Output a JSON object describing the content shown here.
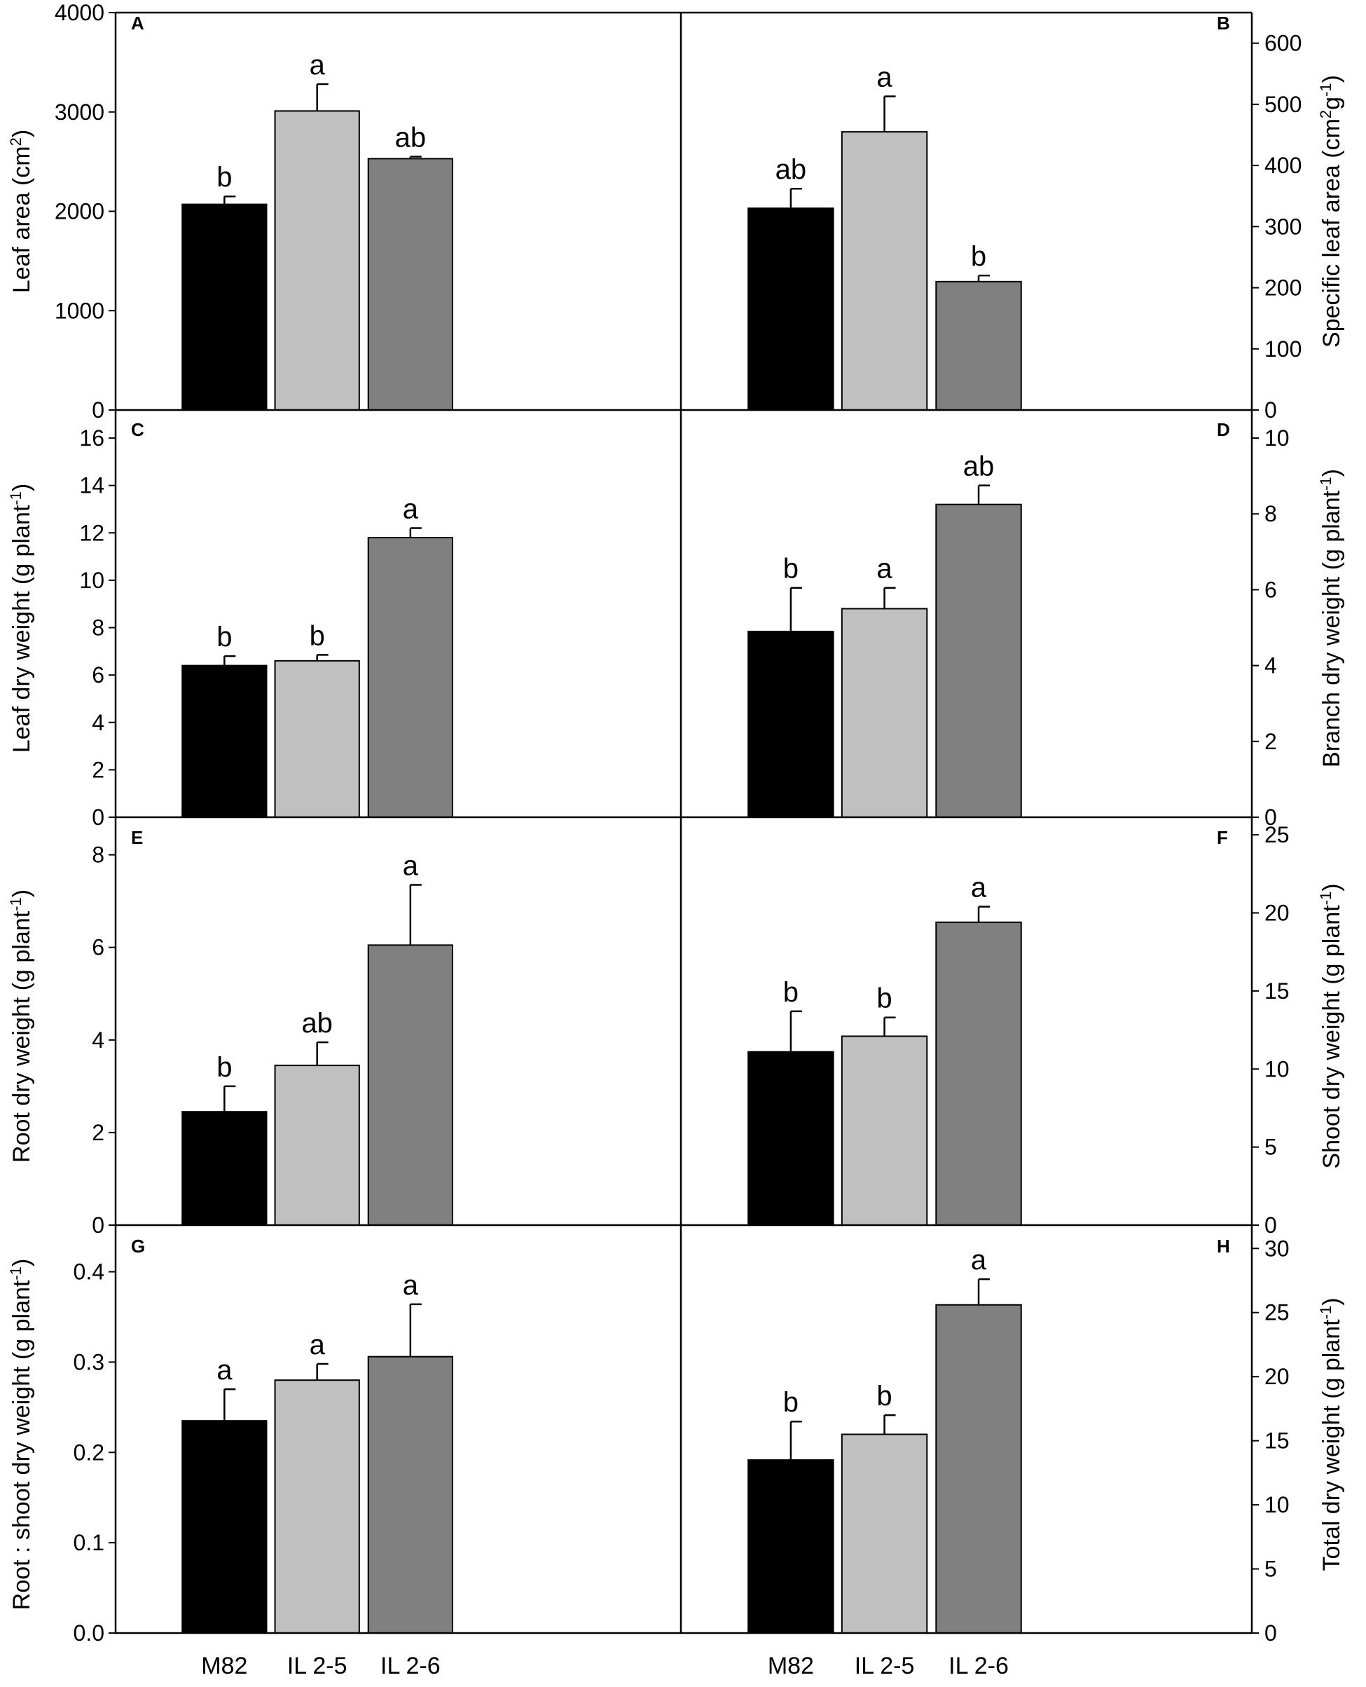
{
  "figure": {
    "categories": [
      "M82",
      "IL 2-5",
      "IL 2-6"
    ],
    "colors": {
      "M82": "#000000",
      "IL 2-5": "#c0c0c0",
      "IL 2-6": "#808080",
      "axis": "#000000",
      "background": "#ffffff"
    }
  },
  "chart_data": [
    {
      "panel": "A",
      "type": "bar",
      "ylabel": "Leaf area (cm2)",
      "ylabel_main": "Leaf area (cm",
      "ylabel_sup": "2",
      "ylabel_tail": ")",
      "axis_side": "left",
      "ylim": [
        0,
        4000
      ],
      "yticks": [
        0,
        1000,
        2000,
        3000,
        4000
      ],
      "categories": [
        "M82",
        "IL 2-5",
        "IL 2-6"
      ],
      "values": [
        2070,
        3010,
        2530
      ],
      "errors": [
        80,
        270,
        20
      ],
      "significance": [
        "b",
        "a",
        "ab"
      ]
    },
    {
      "panel": "B",
      "type": "bar",
      "ylabel": "Specific leaf area (cm2g-1)",
      "ylabel_main": "Specific leaf area (cm",
      "ylabel_sup": "2",
      "ylabel_tail": "g",
      "ylabel_sup2": "-1",
      "ylabel_tail2": ")",
      "axis_side": "right",
      "ylim": [
        0,
        650
      ],
      "yticks": [
        0,
        100,
        200,
        300,
        400,
        500,
        600
      ],
      "categories": [
        "M82",
        "IL 2-5",
        "IL 2-6"
      ],
      "values": [
        330,
        455,
        210
      ],
      "errors": [
        32,
        58,
        10
      ],
      "significance": [
        "ab",
        "a",
        "b"
      ]
    },
    {
      "panel": "C",
      "type": "bar",
      "ylabel": "Leaf dry weight (g plant-1)",
      "ylabel_main": "Leaf dry weight (g plant",
      "ylabel_sup": "-1",
      "ylabel_tail": ")",
      "axis_side": "left",
      "ylim": [
        0,
        16.8
      ],
      "yticks": [
        0,
        2,
        4,
        6,
        8,
        10,
        12,
        14,
        16
      ],
      "categories": [
        "M82",
        "IL 2-5",
        "IL 2-6"
      ],
      "values": [
        6.4,
        6.6,
        11.8
      ],
      "errors": [
        0.4,
        0.25,
        0.4
      ],
      "significance": [
        "b",
        "b",
        "a"
      ]
    },
    {
      "panel": "D",
      "type": "bar",
      "ylabel": "Branch dry weight (g plant-1)",
      "ylabel_main": "Branch dry weight (g plant",
      "ylabel_sup": "-1",
      "ylabel_tail": ")",
      "axis_side": "right",
      "ylim": [
        0,
        10.5
      ],
      "yticks": [
        0,
        2,
        4,
        6,
        8,
        10
      ],
      "categories": [
        "M82",
        "IL 2-5",
        "IL 2-6"
      ],
      "values": [
        4.9,
        5.5,
        8.25
      ],
      "errors": [
        1.15,
        0.55,
        0.5
      ],
      "significance": [
        "b",
        "a",
        "ab"
      ]
    },
    {
      "panel": "E",
      "type": "bar",
      "ylabel": "Root dry weight (g plant-1)",
      "ylabel_main": "Root dry weight (g plant",
      "ylabel_sup": "-1",
      "ylabel_tail": ")",
      "axis_side": "left",
      "ylim": [
        0,
        8.6
      ],
      "yticks": [
        0,
        2,
        4,
        6,
        8
      ],
      "categories": [
        "M82",
        "IL 2-5",
        "IL 2-6"
      ],
      "values": [
        2.45,
        3.45,
        6.05
      ],
      "errors": [
        0.55,
        0.5,
        1.3
      ],
      "significance": [
        "b",
        "ab",
        "a"
      ]
    },
    {
      "panel": "F",
      "type": "bar",
      "ylabel": "Shoot dry weight (g plant-1)",
      "ylabel_main": "Shoot dry weight (g plant",
      "ylabel_sup": "-1",
      "ylabel_tail": ")",
      "axis_side": "right",
      "ylim": [
        0,
        25.5
      ],
      "yticks": [
        0,
        5,
        10,
        15,
        20,
        25
      ],
      "categories": [
        "M82",
        "IL 2-5",
        "IL 2-6"
      ],
      "values": [
        11.1,
        12.1,
        19.4
      ],
      "errors": [
        2.6,
        1.2,
        1.0
      ],
      "significance": [
        "b",
        "b",
        "a"
      ]
    },
    {
      "panel": "G",
      "type": "bar",
      "ylabel": "Root : shoot dry weight (g plant-1)",
      "ylabel_main": "Root : shoot dry weight (g plant",
      "ylabel_sup": "-1",
      "ylabel_tail": ")",
      "axis_side": "left",
      "ylim": [
        0,
        0.44
      ],
      "yticks": [
        0.0,
        0.1,
        0.2,
        0.3,
        0.4
      ],
      "ytick_labels": [
        "0.0",
        "0.1",
        "0.2",
        "0.3",
        "0.4"
      ],
      "categories": [
        "M82",
        "IL 2-5",
        "IL 2-6"
      ],
      "values": [
        0.235,
        0.28,
        0.306
      ],
      "errors": [
        0.035,
        0.018,
        0.058
      ],
      "significance": [
        "a",
        "a",
        "a"
      ]
    },
    {
      "panel": "H",
      "type": "bar",
      "ylabel": "Total dry weight (g plant-1)",
      "ylabel_main": "Total dry weight (g plant",
      "ylabel_sup": "-1",
      "ylabel_tail": ")",
      "axis_side": "right",
      "ylim": [
        0,
        31
      ],
      "yticks": [
        0,
        5,
        10,
        15,
        20,
        25,
        30
      ],
      "categories": [
        "M82",
        "IL 2-5",
        "IL 2-6"
      ],
      "values": [
        13.5,
        15.5,
        25.6
      ],
      "errors": [
        3.0,
        1.5,
        2.0
      ],
      "significance": [
        "b",
        "b",
        "a"
      ]
    }
  ]
}
